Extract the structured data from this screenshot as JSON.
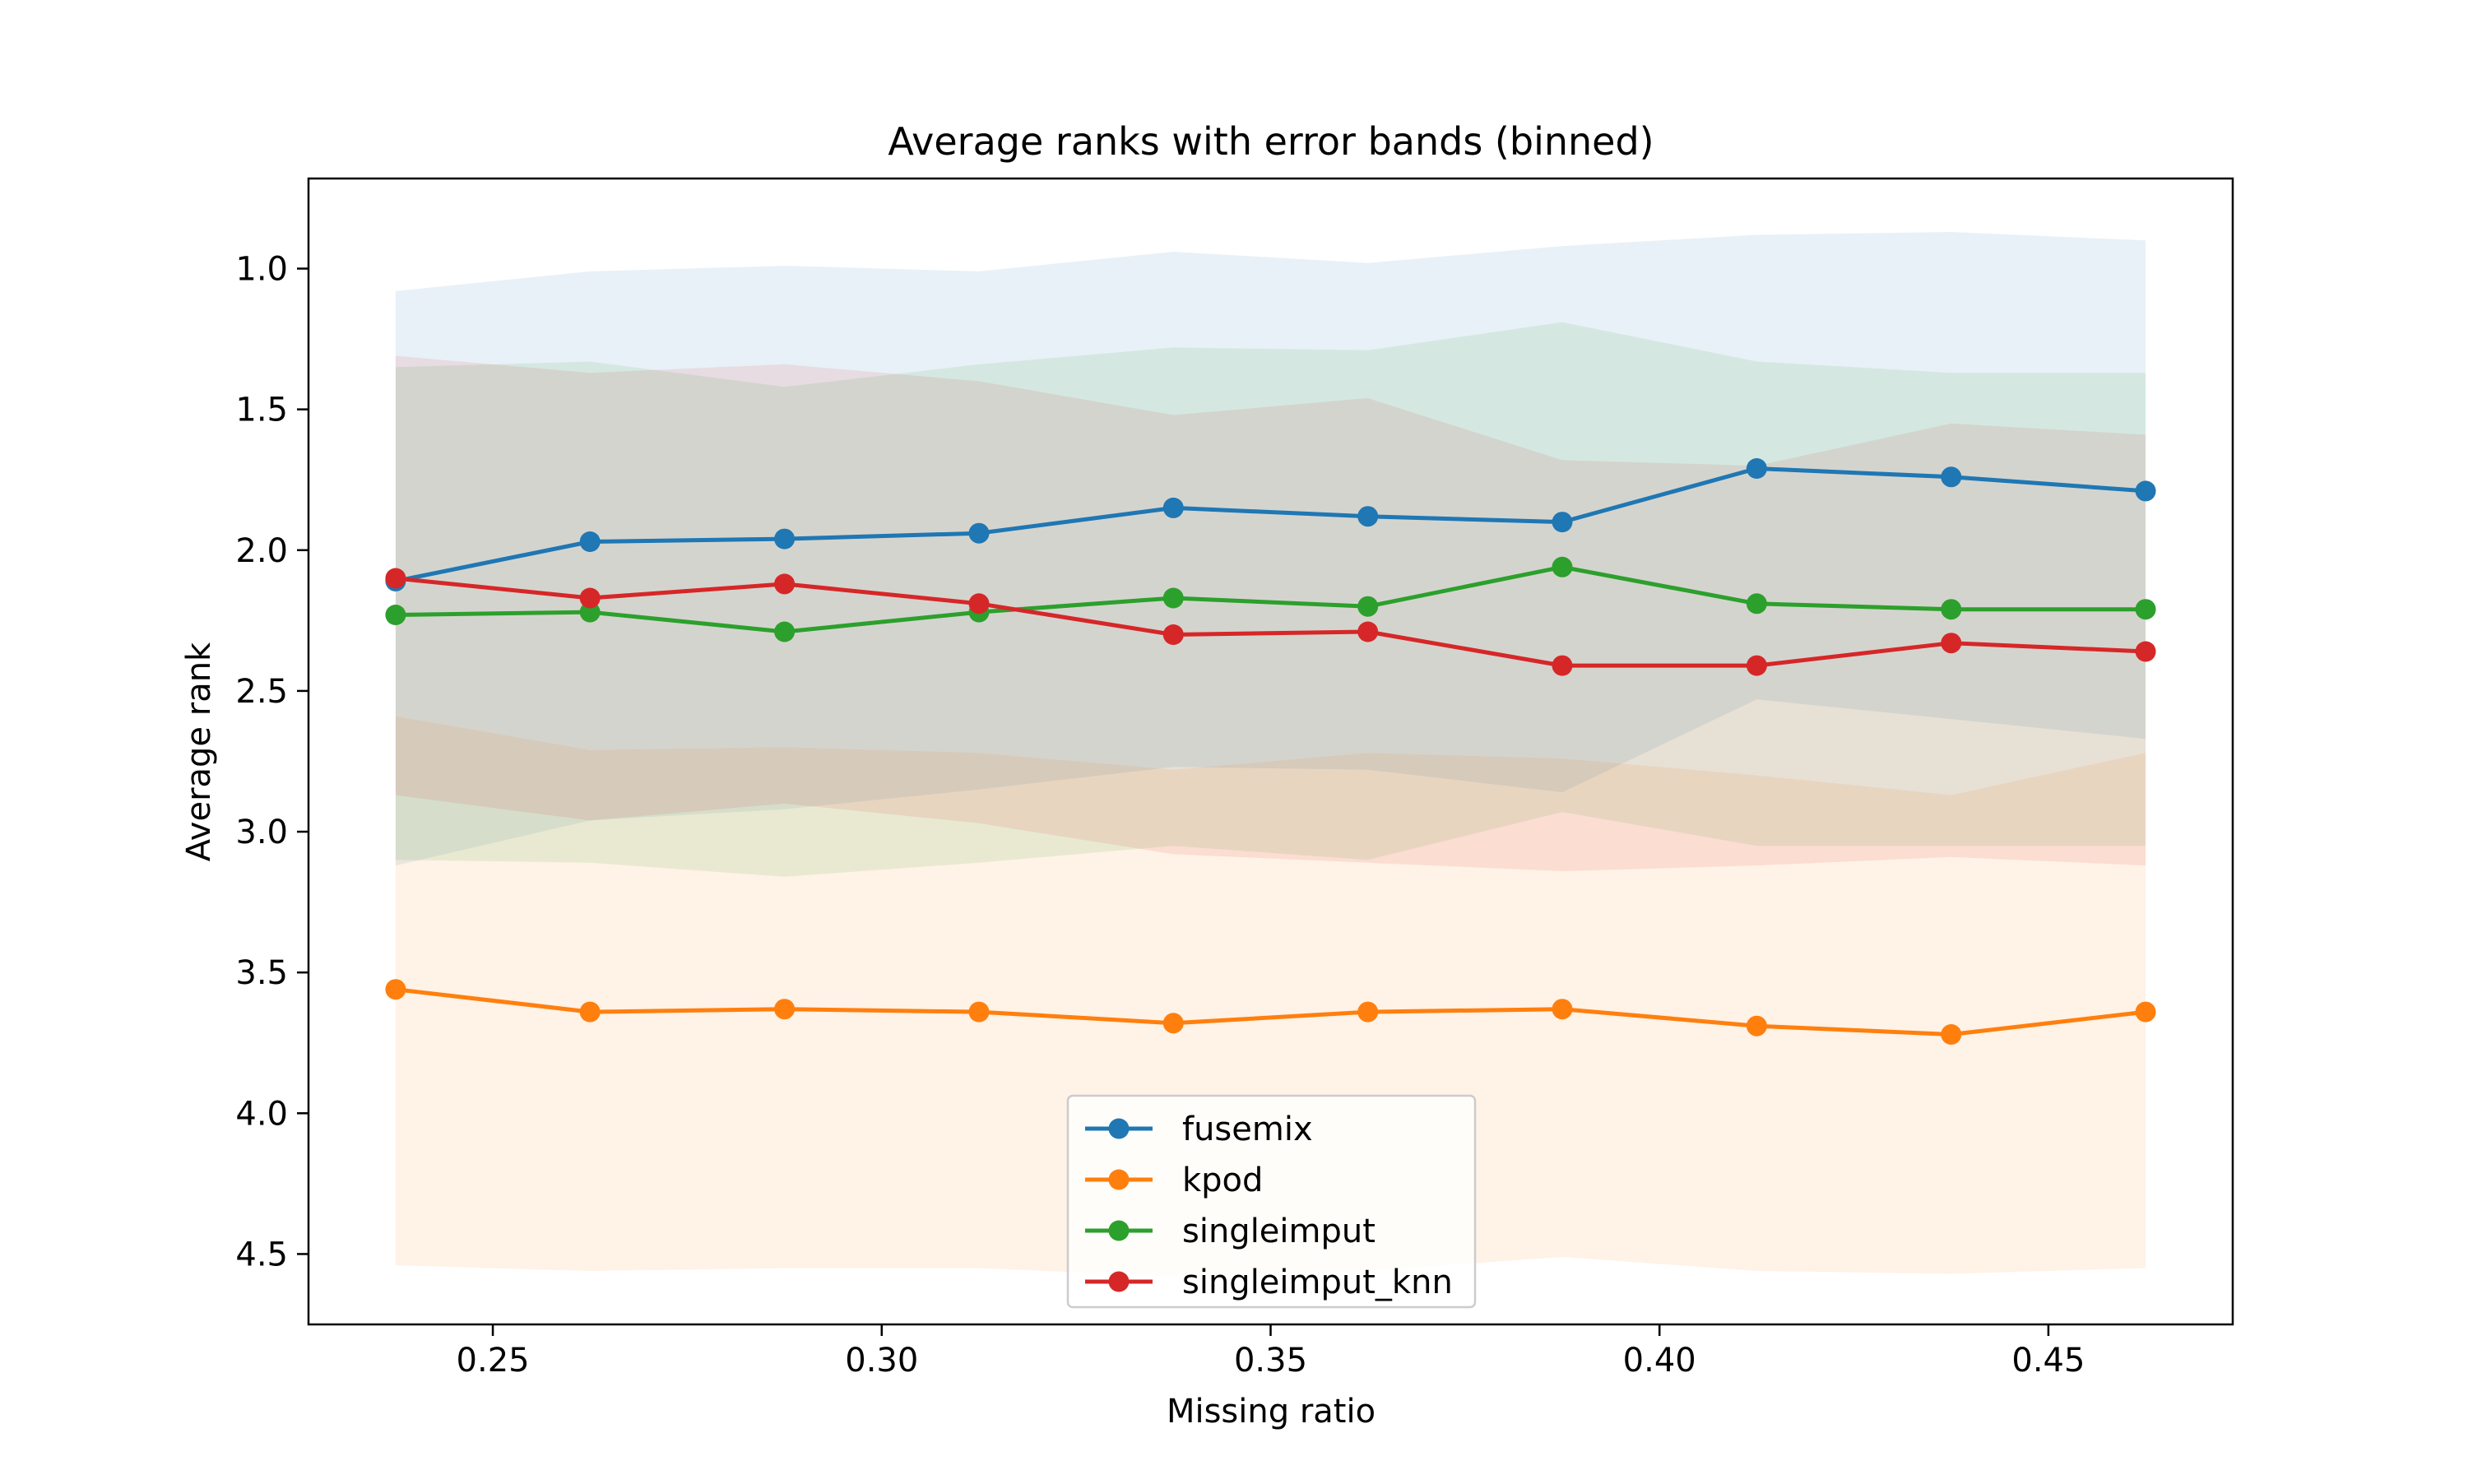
{
  "chart_data": {
    "type": "line",
    "title": "Average ranks with error bands (binned)",
    "xlabel": "Missing ratio",
    "ylabel": "Average rank",
    "xlim": [
      0.2263,
      0.4737
    ],
    "ylim": [
      4.75,
      0.68
    ],
    "y_inverted": true,
    "grid": false,
    "legend_position": "bottom-center",
    "x_ticks": [
      {
        "value": 0.25,
        "label": "0.25"
      },
      {
        "value": 0.3,
        "label": "0.30"
      },
      {
        "value": 0.35,
        "label": "0.35"
      },
      {
        "value": 0.4,
        "label": "0.40"
      },
      {
        "value": 0.45,
        "label": "0.45"
      }
    ],
    "y_ticks": [
      {
        "value": 1.0,
        "label": "1.0"
      },
      {
        "value": 1.5,
        "label": "1.5"
      },
      {
        "value": 2.0,
        "label": "2.0"
      },
      {
        "value": 2.5,
        "label": "2.5"
      },
      {
        "value": 3.0,
        "label": "3.0"
      },
      {
        "value": 3.5,
        "label": "3.5"
      },
      {
        "value": 4.0,
        "label": "4.0"
      },
      {
        "value": 4.5,
        "label": "4.5"
      }
    ],
    "x": [
      0.2375,
      0.2625,
      0.2875,
      0.3125,
      0.3375,
      0.3625,
      0.3875,
      0.4125,
      0.4375,
      0.4625
    ],
    "series": [
      {
        "name": "fusemix",
        "color": "#1f77b4",
        "values": [
          2.11,
          1.97,
          1.96,
          1.94,
          1.85,
          1.88,
          1.9,
          1.71,
          1.74,
          1.79
        ],
        "band_low": [
          1.08,
          1.01,
          0.99,
          1.01,
          0.94,
          0.98,
          0.92,
          0.88,
          0.87,
          0.9
        ],
        "band_high": [
          3.12,
          2.96,
          2.92,
          2.85,
          2.77,
          2.78,
          2.86,
          2.53,
          2.6,
          2.67
        ]
      },
      {
        "name": "kpod",
        "color": "#ff7f0e",
        "values": [
          3.56,
          3.64,
          3.63,
          3.64,
          3.68,
          3.64,
          3.63,
          3.69,
          3.72,
          3.64
        ],
        "band_low": [
          2.59,
          2.71,
          2.7,
          2.72,
          2.78,
          2.72,
          2.74,
          2.8,
          2.87,
          2.72
        ],
        "band_high": [
          4.54,
          4.56,
          4.55,
          4.55,
          4.58,
          4.56,
          4.51,
          4.56,
          4.57,
          4.55
        ]
      },
      {
        "name": "singleimput",
        "color": "#2ca02c",
        "values": [
          2.23,
          2.22,
          2.29,
          2.22,
          2.17,
          2.2,
          2.06,
          2.19,
          2.21,
          2.21
        ],
        "band_low": [
          1.35,
          1.33,
          1.42,
          1.34,
          1.28,
          1.29,
          1.19,
          1.33,
          1.37,
          1.37
        ],
        "band_high": [
          3.1,
          3.11,
          3.16,
          3.11,
          3.05,
          3.1,
          2.93,
          3.05,
          3.05,
          3.05
        ]
      },
      {
        "name": "singleimput_knn",
        "color": "#d62728",
        "values": [
          2.1,
          2.17,
          2.12,
          2.19,
          2.3,
          2.29,
          2.41,
          2.41,
          2.33,
          2.36
        ],
        "band_low": [
          1.31,
          1.37,
          1.34,
          1.4,
          1.52,
          1.46,
          1.68,
          1.7,
          1.55,
          1.59
        ],
        "band_high": [
          2.87,
          2.96,
          2.9,
          2.97,
          3.08,
          3.11,
          3.14,
          3.12,
          3.09,
          3.12
        ]
      }
    ]
  }
}
